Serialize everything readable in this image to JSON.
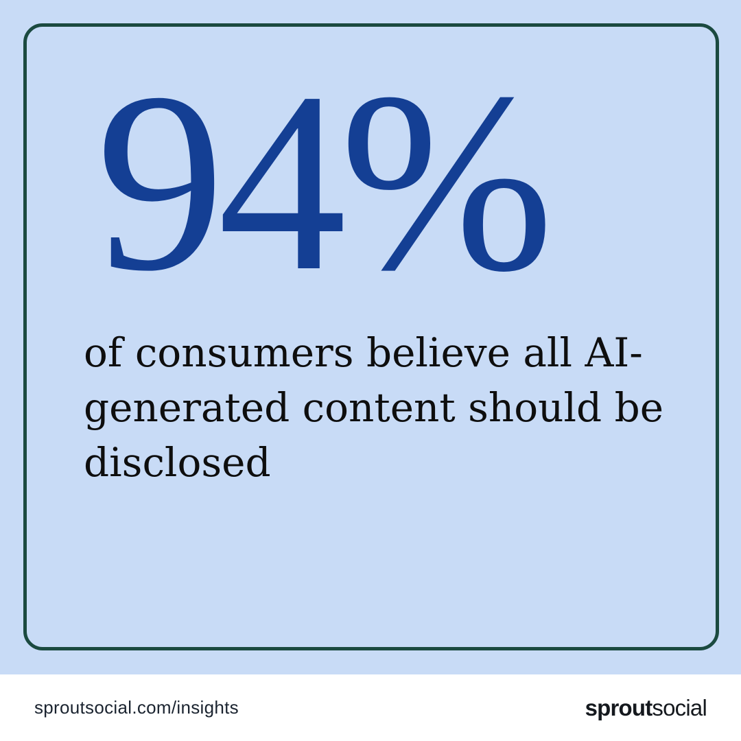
{
  "colors": {
    "background": "#c8dbf6",
    "border": "#1b4a40",
    "stat": "#143f94",
    "text": "#0e0e0e",
    "footer_bg": "#ffffff",
    "footer_text": "#1b2430",
    "logo_color": "#15191e"
  },
  "card": {
    "stat_value": "94%",
    "description_lines": [
      "of consumers believe all AI-",
      "generated content should be",
      "disclosed"
    ]
  },
  "footer": {
    "url": "sproutsocial.com/insights",
    "logo_bold": "sprout",
    "logo_regular": "social"
  }
}
